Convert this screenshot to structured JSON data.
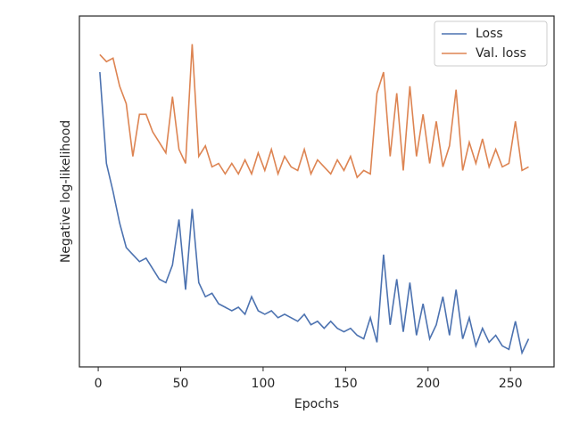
{
  "chart_data": {
    "type": "line",
    "xlabel": "Epochs",
    "ylabel": "Negative log-likelihood",
    "x": [
      1,
      5,
      9,
      13,
      17,
      21,
      25,
      29,
      33,
      37,
      41,
      45,
      49,
      53,
      57,
      61,
      65,
      69,
      73,
      77,
      81,
      85,
      89,
      93,
      97,
      101,
      105,
      109,
      113,
      117,
      121,
      125,
      129,
      133,
      137,
      141,
      145,
      149,
      153,
      157,
      161,
      165,
      169,
      173,
      177,
      181,
      185,
      189,
      193,
      197,
      201,
      205,
      209,
      213,
      217,
      221,
      225,
      229,
      233,
      237,
      241,
      245,
      249,
      253,
      257,
      261
    ],
    "series": [
      {
        "name": "Loss",
        "color": "#4c72b0",
        "values": [
          84,
          58,
          50,
          41,
          34,
          32,
          30,
          31,
          28,
          25,
          24,
          29,
          42,
          22,
          45,
          24,
          20,
          21,
          18,
          17,
          16,
          17,
          15,
          20,
          16,
          15,
          16,
          14,
          15,
          14,
          13,
          15,
          12,
          13,
          11,
          13,
          11,
          10,
          11,
          9,
          8,
          14,
          7,
          32,
          12,
          25,
          10,
          24,
          9,
          18,
          8,
          12,
          20,
          9,
          22,
          8,
          14,
          6,
          11,
          7,
          9,
          6,
          5,
          13,
          4,
          8
        ]
      },
      {
        "name": "Val. loss",
        "color": "#dd8452",
        "values": [
          89,
          87,
          88,
          80,
          75,
          60,
          72,
          72,
          67,
          64,
          61,
          77,
          62,
          58,
          92,
          60,
          63,
          57,
          58,
          55,
          58,
          55,
          59,
          55,
          61,
          56,
          62,
          55,
          60,
          57,
          56,
          62,
          55,
          59,
          57,
          55,
          59,
          56,
          60,
          54,
          56,
          55,
          78,
          84,
          60,
          78,
          56,
          80,
          60,
          72,
          58,
          70,
          57,
          63,
          79,
          56,
          64,
          58,
          65,
          57,
          62,
          57,
          58,
          70,
          56,
          57
        ]
      }
    ],
    "xlim": [
      -11.4,
      276.4
    ],
    "xticks": [
      0,
      50,
      100,
      150,
      200,
      250
    ],
    "ylim": [
      0,
      100
    ],
    "legend": "upper right"
  }
}
